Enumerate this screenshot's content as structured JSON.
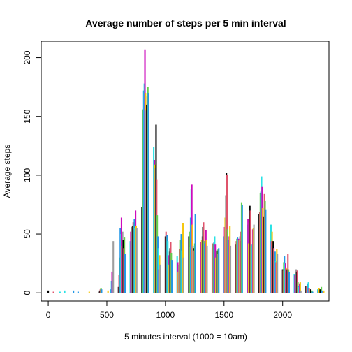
{
  "chart_data": {
    "type": "bar",
    "title": "Average number of steps per 5 min interval",
    "xlabel": "5 minutes interval (1000 = 10am)",
    "ylabel": "Average steps",
    "xlim": [
      -60,
      2395
    ],
    "ylim": [
      -7,
      214
    ],
    "xticks": [
      0,
      500,
      1000,
      1500,
      2000
    ],
    "yticks": [
      0,
      50,
      100,
      150,
      200
    ],
    "xtick_labels": [
      "0",
      "500",
      "1000",
      "1500",
      "2000"
    ],
    "ytick_labels": [
      "0",
      "50",
      "100",
      "150",
      "200"
    ],
    "grid": false,
    "bar_colors": [
      "#000000",
      "#DF536B",
      "#61D04F",
      "#2297E6",
      "#28E2E5",
      "#CD0BBC",
      "#F5C710",
      "#9E9E9E"
    ],
    "hours": [
      [
        2,
        0,
        0,
        0,
        0,
        0,
        0,
        0,
        0,
        1,
        0,
        0
      ],
      [
        1,
        0,
        0,
        0,
        0,
        0,
        0,
        0,
        2,
        0,
        0,
        0
      ],
      [
        0,
        0,
        0,
        2,
        0,
        0,
        0,
        0,
        0,
        0,
        0,
        1
      ],
      [
        0,
        0,
        0,
        0,
        0,
        0,
        0,
        0,
        0,
        0,
        1,
        0
      ],
      [
        0,
        0,
        0,
        0,
        0,
        0,
        0,
        1,
        2,
        3,
        4,
        3
      ],
      [
        0,
        0,
        2,
        0,
        0,
        0,
        0,
        3,
        10,
        18,
        0,
        44
      ],
      [
        5,
        15,
        30,
        55,
        50,
        64,
        40,
        52,
        45,
        38,
        47,
        33
      ],
      [
        44,
        52,
        55,
        56,
        57,
        60,
        58,
        63,
        55,
        70,
        57,
        55
      ],
      [
        73,
        130,
        156,
        172,
        178,
        207,
        170,
        155,
        160,
        167,
        175,
        170
      ],
      [
        124,
        113,
        109,
        106,
        143,
        96,
        66,
        48,
        38,
        20,
        32,
        24
      ],
      [
        48,
        52,
        47,
        49,
        44,
        32,
        24,
        35,
        38,
        43,
        34,
        28
      ],
      [
        31,
        26,
        18,
        24,
        30,
        37,
        45,
        50,
        36,
        40,
        59,
        30
      ],
      [
        48,
        39,
        52,
        64,
        88,
        92,
        58,
        40,
        38,
        36,
        42,
        67
      ],
      [
        41,
        43,
        45,
        48,
        56,
        60,
        44,
        42,
        43,
        53,
        45,
        40
      ],
      [
        38,
        42,
        42,
        43,
        48,
        41,
        30,
        35,
        36,
        33,
        37,
        38
      ],
      [
        48,
        56,
        64,
        83,
        102,
        100,
        54,
        45,
        45,
        48,
        57,
        40
      ],
      [
        41,
        44,
        46,
        47,
        45,
        46,
        45,
        48,
        44,
        52,
        77,
        75
      ],
      [
        58,
        63,
        42,
        60,
        74,
        70,
        40,
        39,
        41,
        54,
        55,
        58
      ],
      [
        67,
        69,
        85,
        86,
        99,
        90,
        72,
        42,
        65,
        84,
        78,
        71
      ],
      [
        58,
        44,
        52,
        40,
        44,
        38,
        33,
        35,
        27,
        26,
        37,
        33
      ],
      [
        20,
        19,
        26,
        31,
        25,
        25,
        21,
        19,
        20,
        33,
        20,
        18
      ],
      [
        16,
        15,
        16,
        20,
        18,
        19,
        9,
        6,
        5,
        8,
        9,
        2
      ],
      [
        6,
        6,
        5,
        8,
        9,
        4,
        3,
        2,
        3,
        0,
        2,
        1
      ],
      [
        3,
        2,
        4,
        0,
        3,
        0,
        5,
        2,
        1,
        1,
        2,
        0
      ]
    ]
  }
}
